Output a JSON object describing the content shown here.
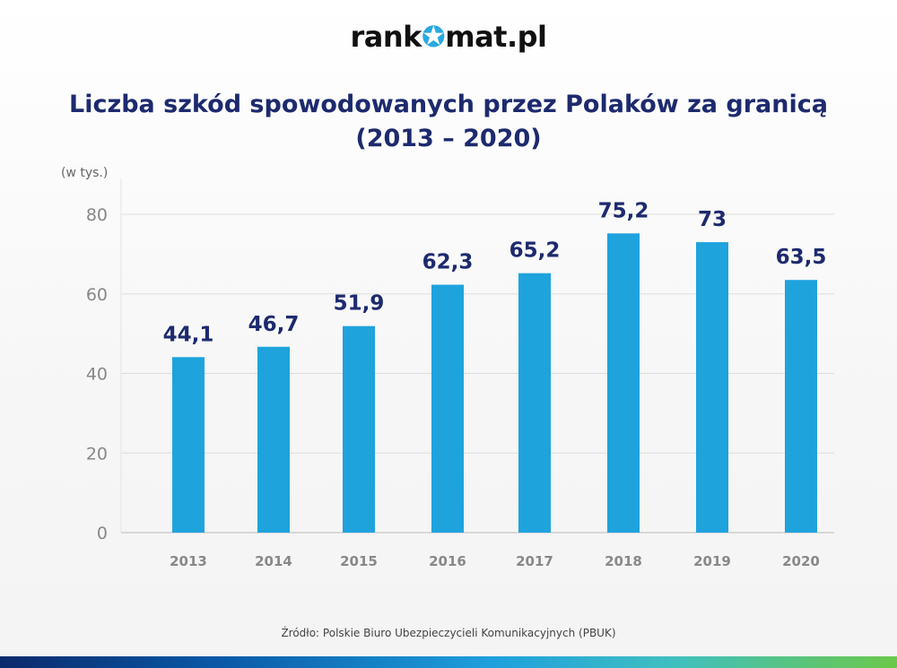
{
  "logo": {
    "before": "rank",
    "star": "✪",
    "after": "mat.pl"
  },
  "colors": {
    "bar": "#1ea3dd",
    "title": "#1d2a6e",
    "grid": "#dddddd",
    "accent_gradient": [
      "#0b2a6b",
      "#1fa0dd",
      "#6cc84a"
    ]
  },
  "chart_data": {
    "type": "bar",
    "title": "Liczba szkód spowodowanych przez Polaków za granicą",
    "subtitle": "(2013 – 2020)",
    "ylabel": "(w tys.)",
    "xlabel": "",
    "categories": [
      "2013",
      "2014",
      "2015",
      "2016",
      "2017",
      "2018",
      "2019",
      "2020"
    ],
    "values": [
      44.1,
      46.7,
      51.9,
      62.3,
      65.2,
      75.2,
      73,
      63.5
    ],
    "data_labels": [
      "44,1",
      "46,7",
      "51,9",
      "62,3",
      "65,2",
      "75,2",
      "73",
      "63,5"
    ],
    "ylim": [
      0,
      80
    ],
    "yticks": [
      "0",
      "20",
      "40",
      "60",
      "80"
    ],
    "grid": true,
    "legend": "none"
  },
  "source": "Źródło: Polskie Biuro Ubezpieczycieli Komunikacyjnych (PBUK)"
}
